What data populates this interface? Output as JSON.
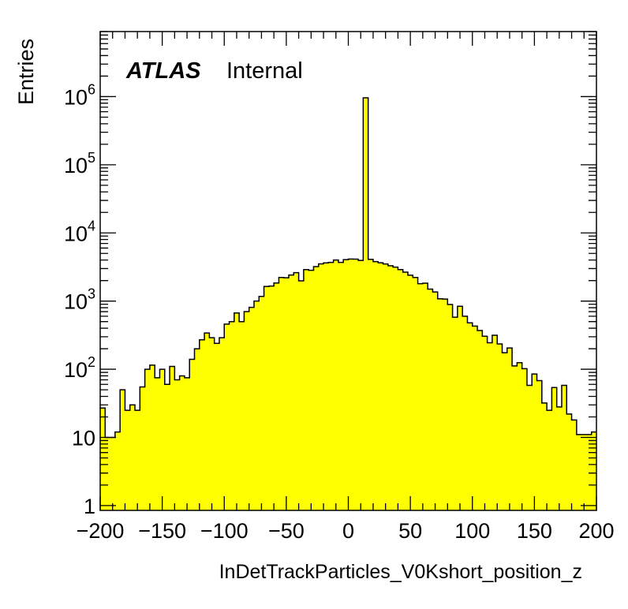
{
  "chart_data": {
    "type": "bar",
    "style": "histogram",
    "fill_color": "#ffff00",
    "line_color": "#000000",
    "xlabel": "InDetTrackParticles_V0Kshort_position_z",
    "ylabel": "Entries",
    "label_bold": "ATLAS",
    "label_normal": "Internal",
    "xlim": [
      -200,
      200
    ],
    "ylim": [
      0.85,
      9000000
    ],
    "log_y": true,
    "grid": false,
    "x_ticks": [
      "−200",
      "−150",
      "−100",
      "−50",
      "0",
      "50",
      "100",
      "150",
      "200"
    ],
    "x_tick_values": [
      -200,
      -150,
      -100,
      -50,
      0,
      50,
      100,
      150,
      200
    ],
    "y_ticks": [
      {
        "value": 1,
        "base": "1",
        "exp": ""
      },
      {
        "value": 10,
        "base": "10",
        "exp": ""
      },
      {
        "value": 100,
        "base": "10",
        "exp": "2"
      },
      {
        "value": 1000,
        "base": "10",
        "exp": "3"
      },
      {
        "value": 10000,
        "base": "10",
        "exp": "4"
      },
      {
        "value": 100000,
        "base": "10",
        "exp": "5"
      },
      {
        "value": 1000000,
        "base": "10",
        "exp": "6"
      }
    ],
    "bin_low": -200,
    "bin_width": 4,
    "values": [
      27,
      10,
      10,
      12,
      50,
      25,
      30,
      25,
      55,
      100,
      115,
      75,
      100,
      60,
      110,
      70,
      80,
      75,
      140,
      200,
      270,
      340,
      290,
      240,
      290,
      460,
      500,
      670,
      500,
      700,
      810,
      1000,
      1170,
      1640,
      1660,
      1840,
      2220,
      2200,
      2410,
      2610,
      1980,
      2900,
      2830,
      3200,
      3510,
      3630,
      3700,
      4000,
      3700,
      4060,
      4140,
      4130,
      3950,
      960000,
      4100,
      3800,
      3650,
      3500,
      3300,
      3150,
      2900,
      2660,
      2400,
      2220,
      1800,
      1830,
      1500,
      1360,
      1080,
      1070,
      890,
      580,
      840,
      600,
      480,
      430,
      370,
      305,
      245,
      315,
      235,
      175,
      205,
      112,
      125,
      102,
      58,
      85,
      68,
      32,
      25,
      54,
      28,
      58,
      22,
      18,
      11,
      11,
      11,
      12
    ]
  }
}
